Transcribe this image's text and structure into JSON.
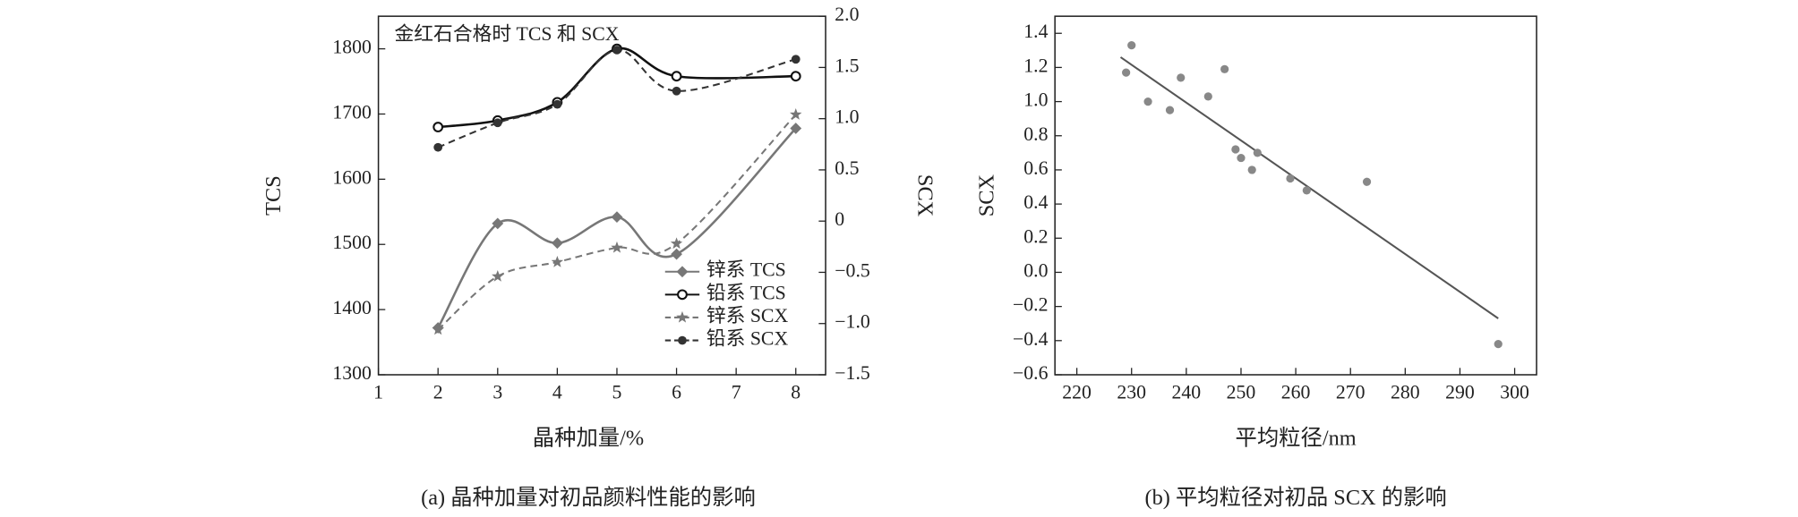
{
  "chart_data": [
    {
      "type": "line",
      "title": "金红石合格时 TCS 和 SCX",
      "xlabel": "晶种加量/%",
      "ylabel": "TCS",
      "y2label": "SCX",
      "caption": "(a) 晶种加量对初品颜料性能的影响",
      "xlim": [
        1,
        8.5
      ],
      "xticks": [
        1,
        2,
        3,
        4,
        5,
        6,
        7,
        8
      ],
      "ylim": [
        1300,
        1850
      ],
      "yticks": [
        1300,
        1400,
        1500,
        1600,
        1700,
        1800
      ],
      "y2lim": [
        -1.5,
        2.0
      ],
      "y2ticks": [
        {
          "value": -1.5,
          "label": "−1.5"
        },
        {
          "value": -1.0,
          "label": "−1.0"
        },
        {
          "value": -0.5,
          "label": "−0.5"
        },
        0,
        0.5,
        {
          "value": 1.0,
          "label": "1.0"
        },
        1.5,
        {
          "value": 2.0,
          "label": "2.0"
        }
      ],
      "legend": "lower right",
      "x": [
        2,
        3,
        4,
        5,
        6,
        8
      ],
      "series": [
        {
          "name": "锌系 TCS",
          "color": "#777777",
          "marker": "diamond",
          "linestyle": "solid",
          "values": [
            1372,
            1532,
            1502,
            1542,
            1485,
            1678
          ]
        },
        {
          "name": "铅系 TCS",
          "color": "#111111",
          "marker": "ring",
          "linestyle": "solid",
          "values": [
            1680,
            1690,
            1718,
            1800,
            1758,
            1758
          ]
        },
        {
          "name": "锌系 SCX",
          "color": "#777777",
          "marker": "star",
          "linestyle": "dashed",
          "axis": "y2",
          "values": [
            -1.06,
            -0.54,
            -0.4,
            -0.26,
            -0.22,
            1.04
          ]
        },
        {
          "name": "铅系 SCX",
          "color": "#333333",
          "marker": "dot",
          "linestyle": "dashed",
          "axis": "y2",
          "values": [
            0.72,
            0.96,
            1.14,
            1.67,
            1.27,
            1.58
          ]
        }
      ]
    },
    {
      "type": "scatter",
      "xlabel": "平均粒径/nm",
      "ylabel": "SCX",
      "caption": "(b) 平均粒径对初品 SCX 的影响",
      "xlim": [
        216,
        304
      ],
      "xticks": [
        220,
        230,
        240,
        250,
        260,
        270,
        280,
        290,
        300
      ],
      "ylim": [
        -0.6,
        1.5
      ],
      "yticks": [
        {
          "value": -0.6,
          "label": "−0.6"
        },
        {
          "value": -0.4,
          "label": "−0.4"
        },
        {
          "value": -0.2,
          "label": "−0.2"
        },
        {
          "value": 0,
          "label": "0.0"
        },
        0.2,
        0.4,
        0.6,
        0.8,
        {
          "value": 1.0,
          "label": "1.0"
        },
        1.2,
        1.4
      ],
      "color": "#888888",
      "x": [
        229,
        230,
        233,
        237,
        239,
        244,
        247,
        249,
        250,
        252,
        253,
        259,
        262,
        273,
        297
      ],
      "values": [
        1.17,
        1.33,
        1.0,
        0.95,
        1.14,
        1.03,
        1.19,
        0.72,
        0.67,
        0.6,
        0.7,
        0.55,
        0.48,
        0.53,
        -0.42
      ],
      "fit_line": {
        "color": "#555555",
        "x": [
          228,
          297
        ],
        "values": [
          1.26,
          -0.27
        ]
      }
    }
  ]
}
